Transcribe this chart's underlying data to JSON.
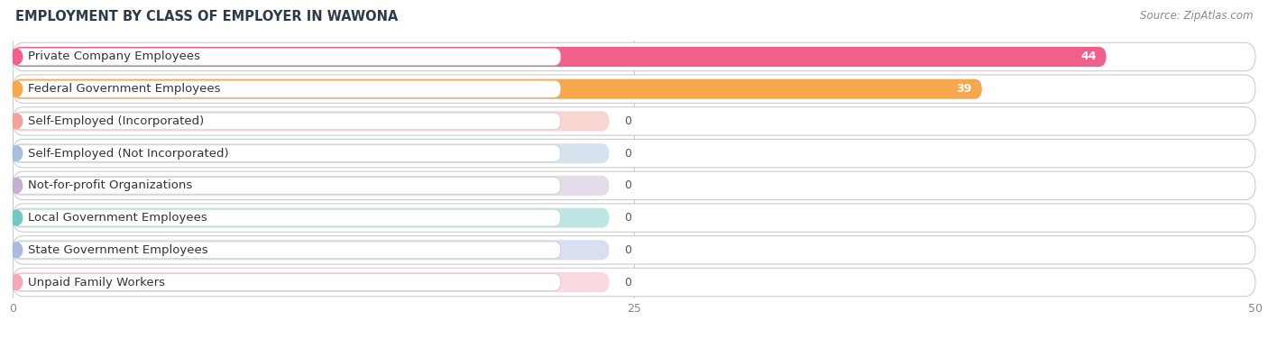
{
  "title": "EMPLOYMENT BY CLASS OF EMPLOYER IN WAWONA",
  "source": "Source: ZipAtlas.com",
  "categories": [
    "Private Company Employees",
    "Federal Government Employees",
    "Self-Employed (Incorporated)",
    "Self-Employed (Not Incorporated)",
    "Not-for-profit Organizations",
    "Local Government Employees",
    "State Government Employees",
    "Unpaid Family Workers"
  ],
  "values": [
    44,
    39,
    0,
    0,
    0,
    0,
    0,
    0
  ],
  "bar_colors": [
    "#F0608A",
    "#F5A84E",
    "#F2A49A",
    "#A8C0DC",
    "#C4B0D4",
    "#72C8C4",
    "#AABAE0",
    "#F5AABB"
  ],
  "xlim": [
    0,
    50
  ],
  "xticks": [
    0,
    25,
    50
  ],
  "title_fontsize": 10.5,
  "source_fontsize": 8.5,
  "label_fontsize": 9.5,
  "value_fontsize": 9
}
